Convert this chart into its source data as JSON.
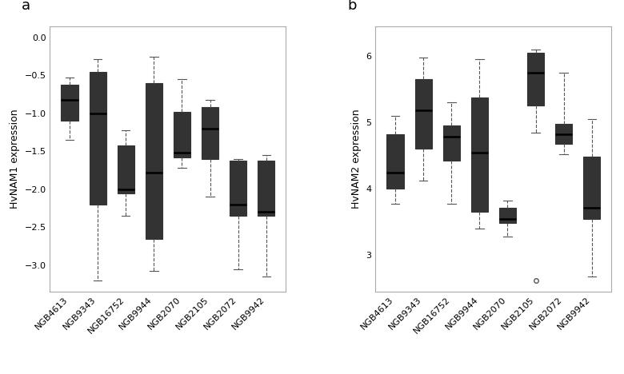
{
  "categories": [
    "NGB4613",
    "NGB9343",
    "NGB16752",
    "NGB9944",
    "NGB2070",
    "NGB2105",
    "NGB2072",
    "NGB9942"
  ],
  "panel_a": {
    "title": "a",
    "ylabel": "HvNAM1 expression",
    "ylim": [
      -3.35,
      0.15
    ],
    "yticks": [
      0.0,
      -0.5,
      -1.0,
      -1.5,
      -2.0,
      -2.5,
      -3.0
    ],
    "boxes": [
      {
        "whislo": -1.35,
        "q1": -1.1,
        "med": -0.82,
        "q3": -0.62,
        "whishi": -0.53,
        "fliers": [],
        "color": "#898989"
      },
      {
        "whislo": -3.2,
        "q1": -2.2,
        "med": -1.0,
        "q3": -0.45,
        "whishi": -0.28,
        "fliers": [],
        "color": "#898989"
      },
      {
        "whislo": -2.35,
        "q1": -2.05,
        "med": -2.0,
        "q3": -1.42,
        "whishi": -1.22,
        "fliers": [],
        "color": "#898989"
      },
      {
        "whislo": -3.08,
        "q1": -2.65,
        "med": -1.78,
        "q3": -0.6,
        "whishi": -0.25,
        "fliers": [],
        "color": "#898989"
      },
      {
        "whislo": -1.72,
        "q1": -1.58,
        "med": -1.52,
        "q3": -0.98,
        "whishi": -0.55,
        "fliers": [],
        "color": "#c8c8c8"
      },
      {
        "whislo": -2.1,
        "q1": -1.6,
        "med": -1.2,
        "q3": -0.92,
        "whishi": -0.82,
        "fliers": [],
        "color": "#c8c8c8"
      },
      {
        "whislo": -3.05,
        "q1": -2.35,
        "med": -2.2,
        "q3": -1.62,
        "whishi": -1.6,
        "fliers": [],
        "color": "#c8c8c8"
      },
      {
        "whislo": -3.15,
        "q1": -2.35,
        "med": -2.3,
        "q3": -1.62,
        "whishi": -1.55,
        "fliers": [],
        "color": "#c8c8c8"
      }
    ]
  },
  "panel_b": {
    "title": "b",
    "ylabel": "HvNAM2 expression",
    "ylim": [
      2.45,
      6.45
    ],
    "yticks": [
      3.0,
      4.0,
      5.0,
      6.0
    ],
    "boxes": [
      {
        "whislo": 3.78,
        "q1": 4.0,
        "med": 4.25,
        "q3": 4.82,
        "whishi": 5.1,
        "fliers": [],
        "color": "#898989"
      },
      {
        "whislo": 4.12,
        "q1": 4.6,
        "med": 5.18,
        "q3": 5.65,
        "whishi": 5.98,
        "fliers": [],
        "color": "#898989"
      },
      {
        "whislo": 3.78,
        "q1": 4.42,
        "med": 4.78,
        "q3": 4.95,
        "whishi": 5.3,
        "fliers": [],
        "color": "#898989"
      },
      {
        "whislo": 3.4,
        "q1": 3.65,
        "med": 4.55,
        "q3": 5.38,
        "whishi": 5.95,
        "fliers": [],
        "color": "#898989"
      },
      {
        "whislo": 3.28,
        "q1": 3.48,
        "med": 3.55,
        "q3": 3.72,
        "whishi": 3.82,
        "fliers": [],
        "color": "#c8c8c8"
      },
      {
        "whislo": 4.85,
        "q1": 5.25,
        "med": 5.75,
        "q3": 6.05,
        "whishi": 6.1,
        "fliers": [
          2.62
        ],
        "color": "#c8c8c8"
      },
      {
        "whislo": 4.52,
        "q1": 4.68,
        "med": 4.82,
        "q3": 4.98,
        "whishi": 5.75,
        "fliers": [],
        "color": "#c8c8c8"
      },
      {
        "whislo": 2.68,
        "q1": 3.55,
        "med": 3.72,
        "q3": 4.48,
        "whishi": 5.05,
        "fliers": [],
        "color": "#c8c8c8"
      }
    ]
  },
  "box_width": 0.6,
  "linewidth": 0.8,
  "median_lw": 1.8,
  "box_edge_color": "#333333",
  "whisker_color": "#555555",
  "background_color": "#ffffff",
  "panel_label_fontsize": 13,
  "axis_label_fontsize": 9,
  "tick_fontsize": 8
}
